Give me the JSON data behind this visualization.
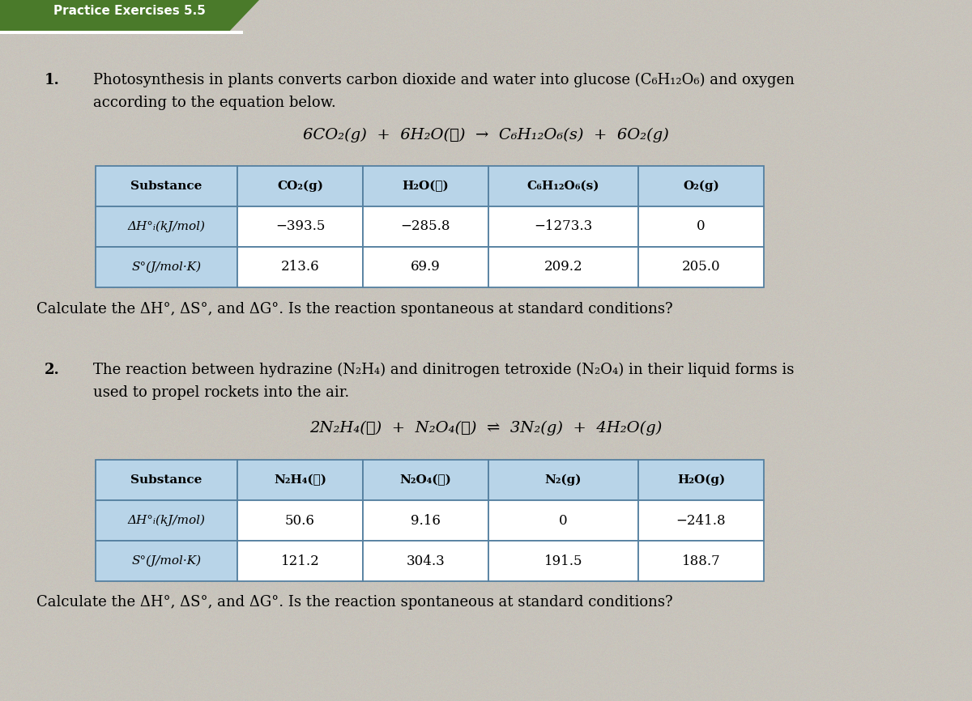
{
  "page_bg": "#c8c4bc",
  "table_header_bg": "#b8d4e8",
  "table_cell_bg": "#ffffff",
  "table_border": "#5580a0",
  "banner_green": "#4a7a2a",
  "problem1": {
    "number": "1.",
    "intro_line1": "Photosynthesis in plants converts carbon dioxide and water into glucose (C₆H₁₂O₆) and oxygen",
    "intro_line2": "according to the equation below.",
    "equation": "6CO₂(g)  +  6H₂O(ℓ)  →  C₆H₁₂O₆(s)  +  6O₂(g)",
    "table_col0": "Substance",
    "table_col1": "CO₂(g)",
    "table_col2": "H₂O(ℓ)",
    "table_col3": "C₆H₁₂O₆(s)",
    "table_col4": "O₂(g)",
    "row1_label": "ΔH°ᵢ(kJ/mol)",
    "row2_label": "S°(J/mol·K)",
    "row1_values": [
      "−393.5",
      "−285.8",
      "−1273.3",
      "0"
    ],
    "row2_values": [
      "213.6",
      "69.9",
      "209.2",
      "205.0"
    ],
    "question": "Calculate the ΔH°, ΔS°, and ΔG°. Is the reaction spontaneous at standard conditions?"
  },
  "problem2": {
    "number": "2.",
    "intro_line1": "The reaction between hydrazine (N₂H₄) and dinitrogen tetroxide (N₂O₄) in their liquid forms is",
    "intro_line2": "used to propel rockets into the air.",
    "equation": "2N₂H₄(ℓ)  +  N₂O₄(ℓ)  ⇌  3N₂(g)  +  4H₂O(g)",
    "table_col0": "Substance",
    "table_col1": "N₂H₄(ℓ)",
    "table_col2": "N₂O₄(ℓ)",
    "table_col3": "N₂(g)",
    "table_col4": "H₂O(g)",
    "row1_label": "ΔH°ᵢ(kJ/mol)",
    "row2_label": "S°(J/mol·K)",
    "row1_values": [
      "50.6",
      "9.16",
      "0",
      "−241.8"
    ],
    "row2_values": [
      "121.2",
      "304.3",
      "191.5",
      "188.7"
    ],
    "question": "Calculate the ΔH°, ΔS°, and ΔG°. Is the reaction spontaneous at standard conditions?"
  }
}
